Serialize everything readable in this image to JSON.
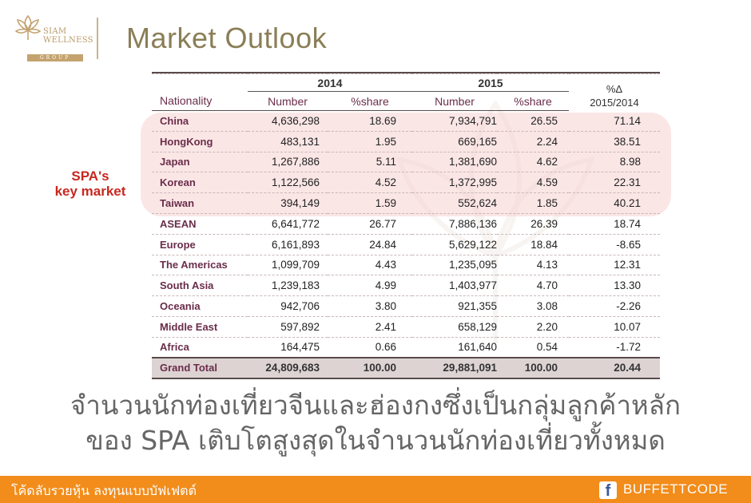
{
  "header": {
    "logo_lines": [
      "SIAM",
      "WELLNESS"
    ],
    "logo_group": "GROUP",
    "title": "Market Outlook"
  },
  "callout": {
    "line1": "SPA's",
    "line2": "key market"
  },
  "table": {
    "year_headers": [
      "2014",
      "2015"
    ],
    "pct_change_header": [
      "%Δ",
      "2015/2014"
    ],
    "columns": [
      "Nationality",
      "Number",
      "%share",
      "Number",
      "%share"
    ],
    "rows": [
      {
        "nationality": "China",
        "n2014": "4,636,298",
        "s2014": "18.69",
        "n2015": "7,934,791",
        "s2015": "26.55",
        "change": "71.14",
        "highlight": true
      },
      {
        "nationality": "HongKong",
        "n2014": "483,131",
        "s2014": "1.95",
        "n2015": "669,165",
        "s2015": "2.24",
        "change": "38.51",
        "highlight": true
      },
      {
        "nationality": "Japan",
        "n2014": "1,267,886",
        "s2014": "5.11",
        "n2015": "1,381,690",
        "s2015": "4.62",
        "change": "8.98",
        "highlight": true
      },
      {
        "nationality": "Korean",
        "n2014": "1,122,566",
        "s2014": "4.52",
        "n2015": "1,372,995",
        "s2015": "4.59",
        "change": "22.31",
        "highlight": true
      },
      {
        "nationality": "Taiwan",
        "n2014": "394,149",
        "s2014": "1.59",
        "n2015": "552,624",
        "s2015": "1.85",
        "change": "40.21",
        "highlight": true
      },
      {
        "nationality": "ASEAN",
        "n2014": "6,641,772",
        "s2014": "26.77",
        "n2015": "7,886,136",
        "s2015": "26.39",
        "change": "18.74",
        "highlight": false
      },
      {
        "nationality": "Europe",
        "n2014": "6,161,893",
        "s2014": "24.84",
        "n2015": "5,629,122",
        "s2015": "18.84",
        "change": "-8.65",
        "highlight": false
      },
      {
        "nationality": "The Americas",
        "n2014": "1,099,709",
        "s2014": "4.43",
        "n2015": "1,235,095",
        "s2015": "4.13",
        "change": "12.31",
        "highlight": false
      },
      {
        "nationality": "South Asia",
        "n2014": "1,239,183",
        "s2014": "4.99",
        "n2015": "1,403,977",
        "s2015": "4.70",
        "change": "13.30",
        "highlight": false
      },
      {
        "nationality": "Oceania",
        "n2014": "942,706",
        "s2014": "3.80",
        "n2015": "921,355",
        "s2015": "3.08",
        "change": "-2.26",
        "highlight": false
      },
      {
        "nationality": "Middle East",
        "n2014": "597,892",
        "s2014": "2.41",
        "n2015": "658,129",
        "s2015": "2.20",
        "change": "10.07",
        "highlight": false
      },
      {
        "nationality": "Africa",
        "n2014": "164,475",
        "s2014": "0.66",
        "n2015": "161,640",
        "s2015": "0.54",
        "change": "-1.72",
        "highlight": false
      }
    ],
    "total": {
      "nationality": "Grand Total",
      "n2014": "24,809,683",
      "s2014": "100.00",
      "n2015": "29,881,091",
      "s2015": "100.00",
      "change": "20.44"
    }
  },
  "caption": {
    "line1": "จำนวนนักท่องเที่ยวจีนและฮ่องกงซึ่งเป็นกลุ่มลูกค้าหลัก",
    "line2": "ของ SPA เติบโตสูงสุดในจำนวนนักท่องเที่ยวทั้งหมด"
  },
  "footer": {
    "left_text": "โค้ดลับรวยหุ้น ลงทุนแบบบัฟเฟตต์",
    "fb_icon_glyph": "f",
    "right_text": "BUFFETTCODE"
  },
  "colors": {
    "title": "#8a7e56",
    "callout": "#c8271f",
    "highlight": "#f8d2d2",
    "footer_bg": "#f28c1a",
    "nationality_text": "#6a2d4a"
  }
}
